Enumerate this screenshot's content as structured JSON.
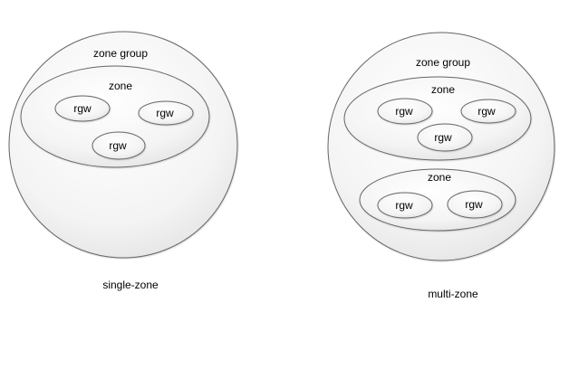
{
  "diagrams": [
    {
      "caption": "single-zone",
      "group_label": "zone group",
      "zones": [
        {
          "label": "zone",
          "gateways": [
            "rgw",
            "rgw",
            "rgw"
          ]
        }
      ]
    },
    {
      "caption": "multi-zone",
      "group_label": "zone group",
      "zones": [
        {
          "label": "zone",
          "gateways": [
            "rgw",
            "rgw",
            "rgw"
          ]
        },
        {
          "label": "zone",
          "gateways": [
            "rgw",
            "rgw"
          ]
        }
      ]
    }
  ],
  "colors": {
    "stroke": "#666666",
    "fill_light": "#ffffff",
    "fill_dark": "#e4e4e4"
  }
}
